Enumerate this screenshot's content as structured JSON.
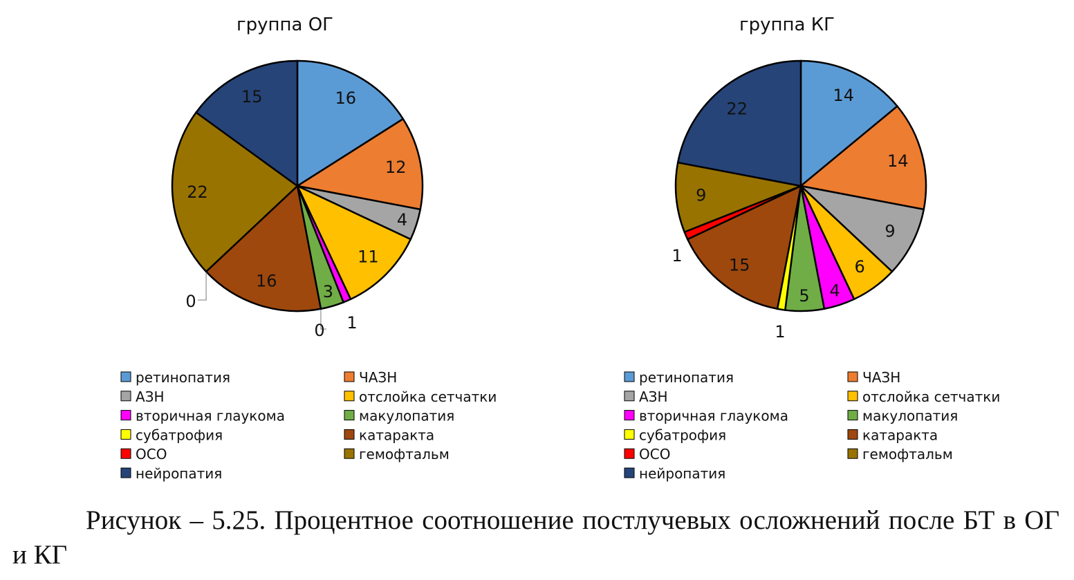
{
  "chart_data": [
    {
      "type": "pie",
      "title": "группа ОГ",
      "categories": [
        "ретинопатия",
        "ЧАЗН",
        "АЗН",
        "отслойка сетчатки",
        "вторичная глаукома",
        "макулопатия",
        "субатрофия",
        "катаракта",
        "ОСО",
        "гемофтальм",
        "нейропатия"
      ],
      "values": [
        16,
        12,
        4,
        11,
        1,
        3,
        0,
        16,
        0,
        22,
        15
      ],
      "colors": [
        "#5B9BD5",
        "#ED7D31",
        "#A5A5A5",
        "#FFC000",
        "#FF00FF",
        "#70AD47",
        "#FFFF00",
        "#9E480E",
        "#FF0000",
        "#997300",
        "#264478"
      ],
      "legend": "bottom"
    },
    {
      "type": "pie",
      "title": "группа КГ",
      "categories": [
        "ретинопатия",
        "ЧАЗН",
        "АЗН",
        "отслойка сетчатки",
        "вторичная глаукома",
        "макулопатия",
        "субатрофия",
        "катаракта",
        "ОСО",
        "гемофтальм",
        "нейропатия"
      ],
      "values": [
        14,
        14,
        9,
        6,
        4,
        5,
        1,
        15,
        1,
        9,
        22
      ],
      "colors": [
        "#5B9BD5",
        "#ED7D31",
        "#A5A5A5",
        "#FFC000",
        "#FF00FF",
        "#70AD47",
        "#FFFF00",
        "#9E480E",
        "#FF0000",
        "#997300",
        "#264478"
      ],
      "legend": "bottom"
    }
  ],
  "caption": "Рисунок – 5.25. Процентное соотношение постлучевых осложнений после БТ в ОГ и КГ"
}
